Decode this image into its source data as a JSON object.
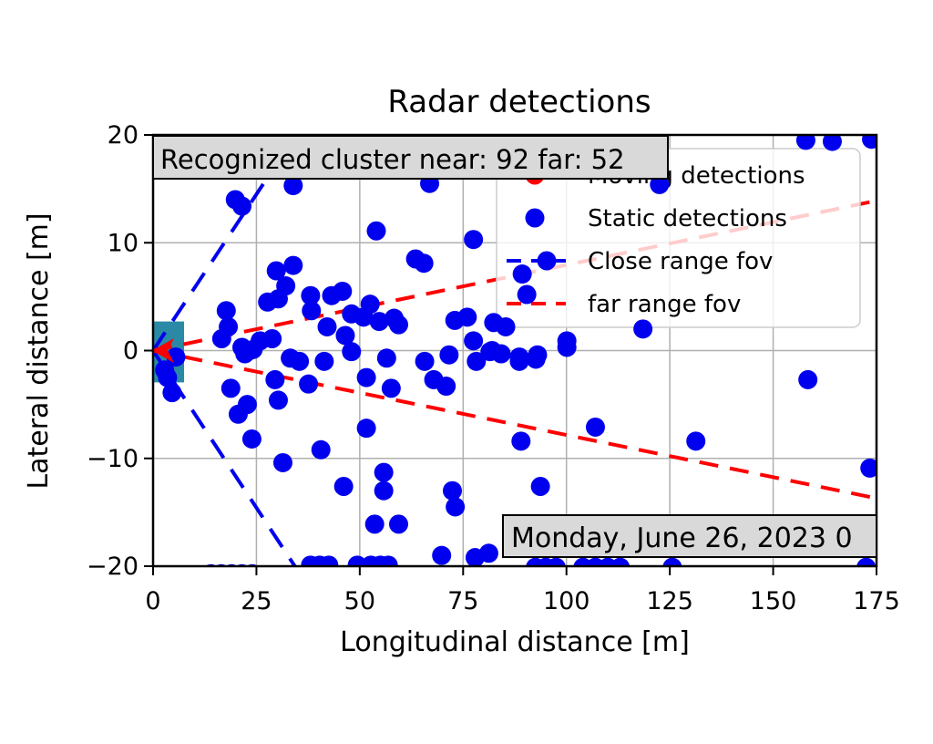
{
  "title": "Radar detections",
  "axes": {
    "xlabel": "Longitudinal distance [m]",
    "ylabel": "Lateral distance [m]",
    "xticks": [
      0,
      25,
      50,
      75,
      100,
      125,
      150,
      175
    ],
    "yticks": [
      20,
      10,
      0,
      -10,
      -20
    ],
    "xlim": [
      0,
      175
    ],
    "ylim": [
      -20,
      20
    ],
    "xgrid": [
      25,
      50,
      75,
      100,
      125,
      150
    ],
    "ygrid": [
      -10,
      0,
      10
    ]
  },
  "annotations": {
    "cluster_box": "Recognized cluster near: 92 far: 52",
    "date_box": "Monday, June 26, 2023 0"
  },
  "legend": {
    "items": [
      {
        "label": "Moving detections",
        "marker": "dot",
        "color": "#ff0000"
      },
      {
        "label": "Static detections",
        "marker": "dot",
        "color": "#0000ee"
      },
      {
        "label": "Close range fov",
        "marker": "dashed-line-dot",
        "color": "#0000ee"
      },
      {
        "label": "far range fov",
        "marker": "dashed-line",
        "color": "#ff0000"
      }
    ]
  },
  "colors": {
    "static_detections": "#0000ee",
    "moving_detections": "#ff0000",
    "close_fov": "#0000ee",
    "far_fov": "#ff0000",
    "ego_box": "#2a8aa6",
    "grid": "#b0b0b0",
    "annotation_bg": "#d9d9d9",
    "legend_border": "#cccccc"
  },
  "chart_data": {
    "type": "scatter",
    "title": "Radar detections",
    "xlabel": "Longitudinal distance [m]",
    "ylabel": "Lateral distance [m]",
    "xlim": [
      0,
      175
    ],
    "ylim": [
      -20,
      20
    ],
    "grid": true,
    "legend_position": "upper right",
    "series": [
      {
        "name": "Static detections",
        "color": "#0000ee",
        "marker_radius_px": 10.5,
        "points": [
          [
            19.9,
            14.0
          ],
          [
            21.5,
            13.4
          ],
          [
            33.9,
            15.3
          ],
          [
            66.9,
            15.5
          ],
          [
            122.5,
            15.4
          ],
          [
            80.0,
            19.9
          ],
          [
            99.8,
            20.1
          ],
          [
            157.9,
            19.5
          ],
          [
            164.3,
            19.4
          ],
          [
            173.8,
            19.6
          ],
          [
            54.0,
            11.1
          ],
          [
            77.5,
            10.3
          ],
          [
            63.5,
            8.5
          ],
          [
            65.5,
            8.1
          ],
          [
            89.3,
            7.1
          ],
          [
            90.4,
            5.2
          ],
          [
            33.9,
            7.9
          ],
          [
            29.8,
            7.4
          ],
          [
            32.1,
            6.0
          ],
          [
            38.1,
            5.1
          ],
          [
            43.2,
            5.1
          ],
          [
            45.8,
            5.5
          ],
          [
            30.3,
            4.8
          ],
          [
            27.7,
            4.5
          ],
          [
            17.7,
            3.7
          ],
          [
            18.2,
            2.2
          ],
          [
            38.3,
            3.7
          ],
          [
            42.1,
            2.2
          ],
          [
            48.0,
            3.4
          ],
          [
            50.9,
            3.1
          ],
          [
            46.5,
            1.4
          ],
          [
            52.5,
            4.3
          ],
          [
            54.7,
            2.7
          ],
          [
            58.3,
            3.0
          ],
          [
            59.4,
            2.4
          ],
          [
            73.0,
            2.8
          ],
          [
            76.0,
            3.1
          ],
          [
            77.5,
            0.9
          ],
          [
            82.4,
            2.6
          ],
          [
            85.3,
            2.2
          ],
          [
            100.1,
            0.9
          ],
          [
            118.5,
            2.0
          ],
          [
            25.9,
            0.9
          ],
          [
            28.8,
            1.1
          ],
          [
            21.5,
            0.3
          ],
          [
            16.6,
            1.1
          ],
          [
            24.2,
            0.1
          ],
          [
            3.5,
            -2.5
          ],
          [
            4.6,
            -3.9
          ],
          [
            5.5,
            -0.6
          ],
          [
            2.8,
            -1.8
          ],
          [
            18.8,
            -3.5
          ],
          [
            22.2,
            -0.3
          ],
          [
            23.3,
            0.0
          ],
          [
            22.8,
            -5.0
          ],
          [
            20.6,
            -5.9
          ],
          [
            29.5,
            -2.7
          ],
          [
            30.3,
            -4.6
          ],
          [
            33.2,
            -0.7
          ],
          [
            35.4,
            -1.0
          ],
          [
            37.6,
            -3.1
          ],
          [
            41.4,
            -1.0
          ],
          [
            48.0,
            -0.1
          ],
          [
            51.6,
            -2.5
          ],
          [
            56.5,
            -0.7
          ],
          [
            57.6,
            -3.5
          ],
          [
            65.7,
            -1.0
          ],
          [
            67.9,
            -2.7
          ],
          [
            70.9,
            -3.3
          ],
          [
            71.6,
            -0.4
          ],
          [
            78.2,
            -1.0
          ],
          [
            81.5,
            -0.1
          ],
          [
            84.2,
            -0.3
          ],
          [
            82.0,
            0.0
          ],
          [
            88.6,
            -0.6
          ],
          [
            93.0,
            -0.4
          ],
          [
            88.6,
            -1.0
          ],
          [
            92.6,
            -0.8
          ],
          [
            100.1,
            0.3
          ],
          [
            23.9,
            -8.2
          ],
          [
            31.4,
            -10.4
          ],
          [
            40.6,
            -9.2
          ],
          [
            46.1,
            -12.6
          ],
          [
            51.6,
            -7.2
          ],
          [
            55.8,
            -11.3
          ],
          [
            55.8,
            -13.0
          ],
          [
            53.6,
            -16.1
          ],
          [
            59.4,
            -16.1
          ],
          [
            69.8,
            -19.0
          ],
          [
            72.4,
            -13.0
          ],
          [
            73.1,
            -14.5
          ],
          [
            77.9,
            -19.2
          ],
          [
            81.2,
            -18.8
          ],
          [
            107.0,
            -7.1
          ],
          [
            89.0,
            -8.4
          ],
          [
            131.3,
            -8.4
          ],
          [
            93.7,
            -12.6
          ],
          [
            158.4,
            -2.7
          ],
          [
            173.4,
            -10.9
          ],
          [
            14.0,
            -20.7
          ],
          [
            16.5,
            -20.7
          ],
          [
            19.0,
            -20.7
          ],
          [
            21.5,
            -20.7
          ],
          [
            24.0,
            -20.7
          ],
          [
            38.1,
            -19.9
          ],
          [
            40.3,
            -19.9
          ],
          [
            42.5,
            -19.9
          ],
          [
            49.4,
            -19.9
          ],
          [
            51.0,
            -20.2
          ],
          [
            52.7,
            -19.9
          ],
          [
            55.0,
            -19.9
          ],
          [
            56.9,
            -19.9
          ],
          [
            92.5,
            -20.1
          ],
          [
            95.0,
            -20.1
          ],
          [
            97.5,
            -20.1
          ],
          [
            104.0,
            -20.1
          ],
          [
            107.0,
            -20.1
          ],
          [
            110.0,
            -20.1
          ],
          [
            113.0,
            -20.1
          ],
          [
            125.6,
            -20.1
          ],
          [
            172.5,
            -20.1
          ]
        ]
      },
      {
        "name": "Moving detections",
        "color": "#ff0000",
        "marker": "left-arrow",
        "points": [
          [
            0,
            0
          ]
        ]
      }
    ],
    "fov_lines": [
      {
        "name": "close range fov upper",
        "color": "#0000ee",
        "from": [
          0,
          0
        ],
        "to": [
          34.5,
          20
        ],
        "dash": "24 15",
        "width": 4
      },
      {
        "name": "close range fov lower",
        "color": "#0000ee",
        "from": [
          0,
          0
        ],
        "to": [
          34.3,
          -20
        ],
        "dash": "24 15",
        "width": 4
      },
      {
        "name": "far range fov upper",
        "color": "#ff0000",
        "from": [
          0,
          0
        ],
        "to": [
          175,
          13.9
        ],
        "dash": "21 13",
        "width": 4
      },
      {
        "name": "far range fov lower",
        "color": "#ff0000",
        "from": [
          0,
          0
        ],
        "to": [
          175,
          -13.7
        ],
        "dash": "21 13",
        "width": 4
      }
    ],
    "ego_rect": {
      "x": [
        0,
        7.5
      ],
      "y": [
        -2.95,
        2.7
      ]
    }
  }
}
